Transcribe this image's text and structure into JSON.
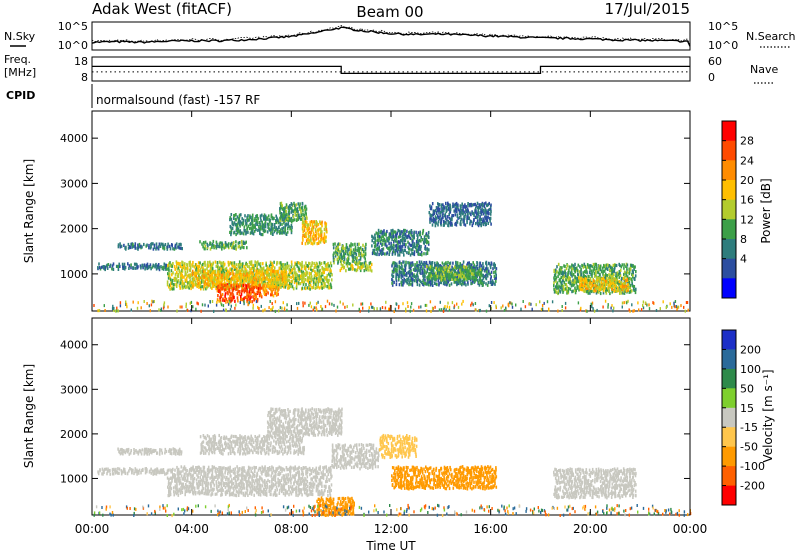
{
  "header": {
    "station": "Adak West (fitACF)",
    "beam": "Beam 00",
    "date": "17/Jul/2015"
  },
  "labels": {
    "nsky": "N.Sky",
    "nsearch": "N.Search",
    "freq": "Freq.",
    "mhz": "[MHz]",
    "nave": "Nave",
    "cpid": "CPID",
    "cpid_text": "normalsound (fast) -157 RF",
    "time_axis": "Time UT"
  },
  "noise_panel": {
    "left_ticks": [
      "10^5",
      "10^0"
    ],
    "right_ticks": [
      "10^5",
      "10^0"
    ]
  },
  "freq_panel": {
    "left_ticks": [
      "18",
      "8"
    ],
    "right_ticks": [
      "60",
      "0"
    ],
    "freq_segments": [
      {
        "start": 0.0,
        "end": 10.0,
        "mhz": 14.2
      },
      {
        "start": 10.0,
        "end": 18.0,
        "mhz": 11.0
      },
      {
        "start": 18.0,
        "end": 24.0,
        "mhz": 14.2
      }
    ],
    "nave": 22
  },
  "power_colorbar": {
    "label": "Power [dB]",
    "ticks": [
      "28",
      "24",
      "20",
      "16",
      "12",
      "8",
      "4"
    ],
    "colors": [
      "#ff0000",
      "#ff4a00",
      "#ff8c00",
      "#ffbf00",
      "#b3cc2d",
      "#3c9f48",
      "#2e7d7d",
      "#2c4ea0",
      "#0000ff"
    ]
  },
  "velocity_colorbar": {
    "label": "Velocity [m s⁻¹]",
    "ticks": [
      "200",
      "100",
      "50",
      "15",
      "-15",
      "-50",
      "-100",
      "-200"
    ],
    "colors": [
      "#1c2fc7",
      "#2a6a9a",
      "#2e8a4a",
      "#7ecf2e",
      "#c8c8c0",
      "#ffc64c",
      "#ff9a00",
      "#ff6000",
      "#ff0000"
    ]
  },
  "chart_data": {
    "type": "heatmap",
    "xlabel": "Time UT",
    "ylabel": "Slant Range [km]",
    "x_ticks": [
      "00:00",
      "04:00",
      "08:00",
      "12:00",
      "16:00",
      "20:00",
      "00:00"
    ],
    "x_range": [
      0,
      24
    ],
    "y_ticks": [
      "1000",
      "2000",
      "3000",
      "4000"
    ],
    "y_range": [
      180,
      4600
    ],
    "noise_line": [
      [
        0,
        1.0
      ],
      [
        1,
        1.1
      ],
      [
        2,
        1.0
      ],
      [
        3,
        1.2
      ],
      [
        4,
        1.3
      ],
      [
        5,
        1.3
      ],
      [
        6,
        1.5
      ],
      [
        7,
        1.8
      ],
      [
        8,
        2.2
      ],
      [
        9,
        3.0
      ],
      [
        9.5,
        3.6
      ],
      [
        10,
        4.0
      ],
      [
        11,
        3.3
      ],
      [
        12,
        2.8
      ],
      [
        13,
        2.6
      ],
      [
        14,
        2.7
      ],
      [
        15,
        2.5
      ],
      [
        16,
        2.3
      ],
      [
        17,
        2.1
      ],
      [
        18,
        1.9
      ],
      [
        19,
        1.8
      ],
      [
        20,
        1.7
      ],
      [
        21,
        1.5
      ],
      [
        22,
        1.4
      ],
      [
        23,
        1.3
      ],
      [
        24,
        1.2
      ]
    ],
    "power_regions": [
      {
        "t0": 1.0,
        "t1": 3.6,
        "r0": 1580,
        "r1": 1700,
        "dB": 7
      },
      {
        "t0": 0.2,
        "t1": 3.0,
        "r0": 1130,
        "r1": 1260,
        "dB": 7
      },
      {
        "t0": 3.0,
        "t1": 9.6,
        "r0": 700,
        "r1": 1300,
        "dB": 16
      },
      {
        "t0": 4.0,
        "t1": 7.8,
        "r0": 750,
        "r1": 1100,
        "dB": 20
      },
      {
        "t0": 5.0,
        "t1": 6.8,
        "r0": 420,
        "r1": 800,
        "dB": 28
      },
      {
        "t0": 6.8,
        "t1": 7.5,
        "r0": 550,
        "r1": 780,
        "dB": 24
      },
      {
        "t0": 4.3,
        "t1": 6.2,
        "r0": 1580,
        "r1": 1760,
        "dB": 12
      },
      {
        "t0": 5.5,
        "t1": 8.0,
        "r0": 1900,
        "r1": 2350,
        "dB": 10
      },
      {
        "t0": 7.5,
        "t1": 8.6,
        "r0": 2200,
        "r1": 2600,
        "dB": 12
      },
      {
        "t0": 8.4,
        "t1": 9.4,
        "r0": 1700,
        "r1": 2200,
        "dB": 20
      },
      {
        "t0": 9.6,
        "t1": 11.0,
        "r0": 1250,
        "r1": 1700,
        "dB": 12
      },
      {
        "t0": 9.9,
        "t1": 11.2,
        "r0": 1100,
        "r1": 1300,
        "dB": 16
      },
      {
        "t0": 11.2,
        "t1": 13.5,
        "r0": 1450,
        "r1": 2000,
        "dB": 8
      },
      {
        "t0": 13.5,
        "t1": 16.0,
        "r0": 2100,
        "r1": 2600,
        "dB": 6
      },
      {
        "t0": 12.0,
        "t1": 16.2,
        "r0": 780,
        "r1": 1300,
        "dB": 8
      },
      {
        "t0": 13.4,
        "t1": 15.6,
        "r0": 900,
        "r1": 1200,
        "dB": 13
      },
      {
        "t0": 18.5,
        "t1": 21.8,
        "r0": 600,
        "r1": 1250,
        "dB": 12
      },
      {
        "t0": 19.5,
        "t1": 21.5,
        "r0": 650,
        "r1": 950,
        "dB": 20
      }
    ],
    "velocity_regions": [
      {
        "t0": 1.0,
        "t1": 3.6,
        "r0": 1580,
        "r1": 1700,
        "v": 0
      },
      {
        "t0": 0.2,
        "t1": 3.0,
        "r0": 1130,
        "r1": 1260,
        "v": 0
      },
      {
        "t0": 3.0,
        "t1": 9.6,
        "r0": 650,
        "r1": 1300,
        "v": 0
      },
      {
        "t0": 4.3,
        "t1": 8.5,
        "r0": 1580,
        "r1": 2000,
        "v": 0
      },
      {
        "t0": 7.0,
        "t1": 10.0,
        "r0": 2000,
        "r1": 2600,
        "v": 0
      },
      {
        "t0": 9.6,
        "t1": 11.5,
        "r0": 1250,
        "r1": 1800,
        "v": 0
      },
      {
        "t0": 11.5,
        "t1": 13.0,
        "r0": 1500,
        "r1": 2000,
        "v": -40
      },
      {
        "t0": 12.0,
        "t1": 16.2,
        "r0": 800,
        "r1": 1300,
        "v": -60
      },
      {
        "t0": 9.0,
        "t1": 10.5,
        "r0": 200,
        "r1": 600,
        "v": -90
      },
      {
        "t0": 18.5,
        "t1": 21.8,
        "r0": 600,
        "r1": 1250,
        "v": 0
      }
    ]
  }
}
